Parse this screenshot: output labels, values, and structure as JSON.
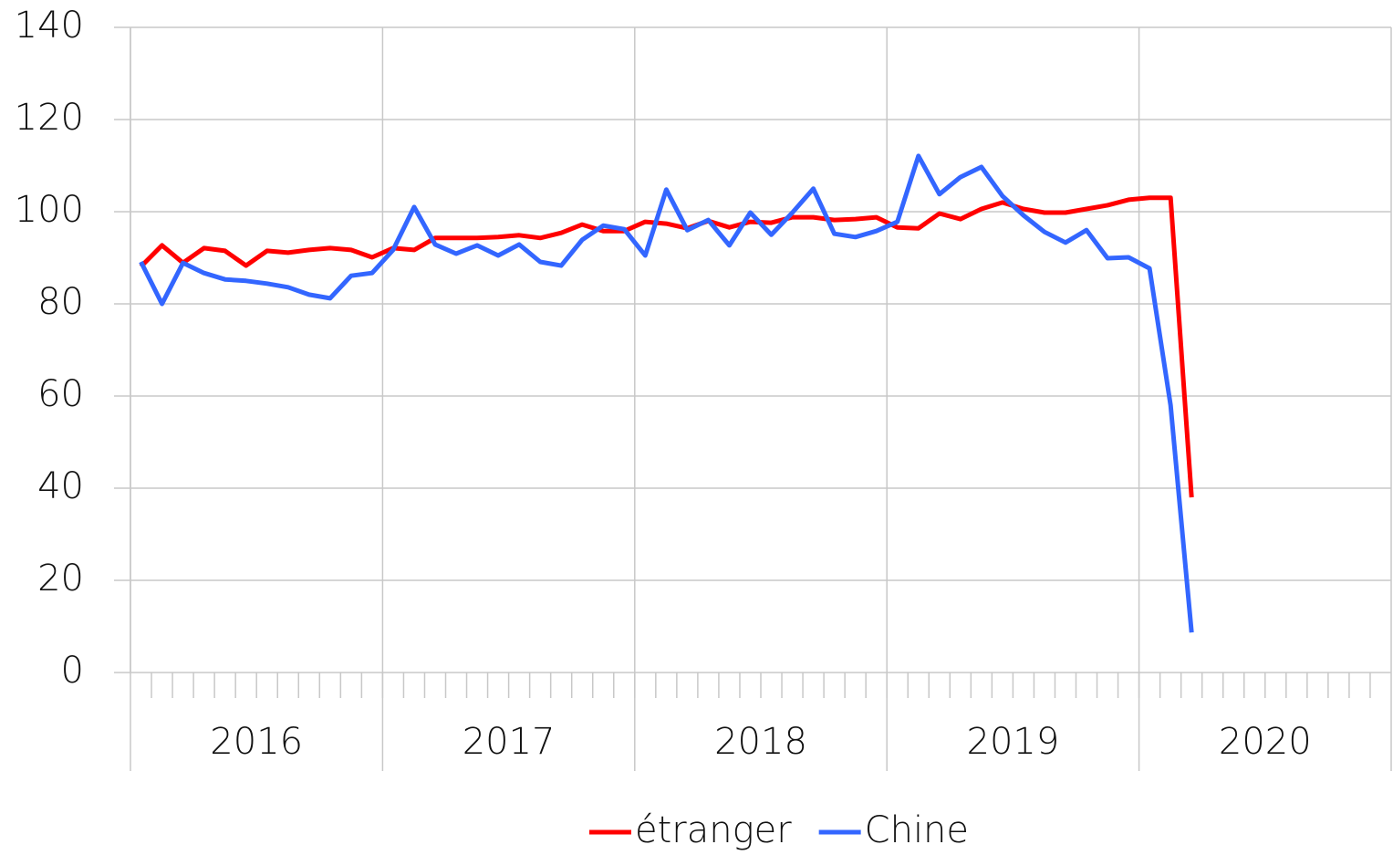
{
  "chart_data": {
    "type": "line",
    "categories": [
      null,
      null,
      null,
      null,
      null,
      null,
      null,
      null,
      null,
      null,
      null,
      null,
      null,
      null,
      null,
      null,
      null,
      null,
      null,
      null,
      null,
      null,
      null,
      null,
      null,
      null,
      null,
      null,
      null,
      null,
      null,
      null,
      null,
      null,
      null,
      null,
      null,
      null,
      null,
      null,
      null,
      null,
      null,
      null,
      null,
      null,
      null,
      null,
      null,
      null,
      null,
      null,
      null,
      null,
      null,
      null,
      null,
      null,
      null,
      null
    ],
    "groups": [
      "2016",
      "2017",
      "2018",
      "2019",
      "2020"
    ],
    "series": [
      {
        "name": "étranger",
        "color": "#ff0000",
        "values": [
          88.1,
          92.7,
          88.9,
          92.1,
          91.5,
          88.3,
          91.5,
          91.1,
          91.7,
          92.1,
          91.7,
          90.1,
          92.1,
          91.7,
          94.3,
          94.3,
          94.3,
          94.5,
          94.9,
          94.3,
          95.4,
          97.2,
          95.8,
          95.8,
          97.8,
          97.4,
          96.4,
          98.0,
          96.6,
          97.8,
          97.6,
          98.8,
          98.8,
          98.2,
          98.4,
          98.8,
          96.6,
          96.4,
          99.6,
          98.4,
          100.6,
          102.0,
          100.6,
          99.8,
          99.8,
          100.6,
          101.4,
          102.6,
          103.0,
          103.0,
          38.0,
          null,
          null,
          null,
          null,
          null,
          null,
          null,
          null,
          null
        ]
      },
      {
        "name": "Chine",
        "color": "#3366ff",
        "values": [
          89.1,
          80.0,
          88.9,
          86.7,
          85.3,
          85.0,
          84.4,
          83.6,
          82.0,
          81.2,
          86.1,
          86.7,
          91.7,
          101.0,
          92.9,
          90.9,
          92.7,
          90.5,
          92.9,
          89.1,
          88.3,
          93.9,
          97.0,
          96.2,
          90.5,
          104.8,
          96.0,
          98.2,
          92.7,
          99.8,
          95.0,
          99.8,
          105.0,
          95.2,
          94.5,
          95.8,
          97.8,
          112.1,
          103.8,
          107.5,
          109.7,
          103.4,
          99.2,
          95.6,
          93.3,
          96.0,
          89.9,
          90.1,
          87.7,
          58.0,
          8.7,
          null,
          null,
          null,
          null,
          null,
          null,
          null,
          null,
          null
        ]
      }
    ],
    "ylim": [
      0,
      140
    ],
    "yticks": [
      0,
      20,
      40,
      60,
      80,
      100,
      120,
      140
    ],
    "grid": true,
    "legend": "bottom"
  }
}
